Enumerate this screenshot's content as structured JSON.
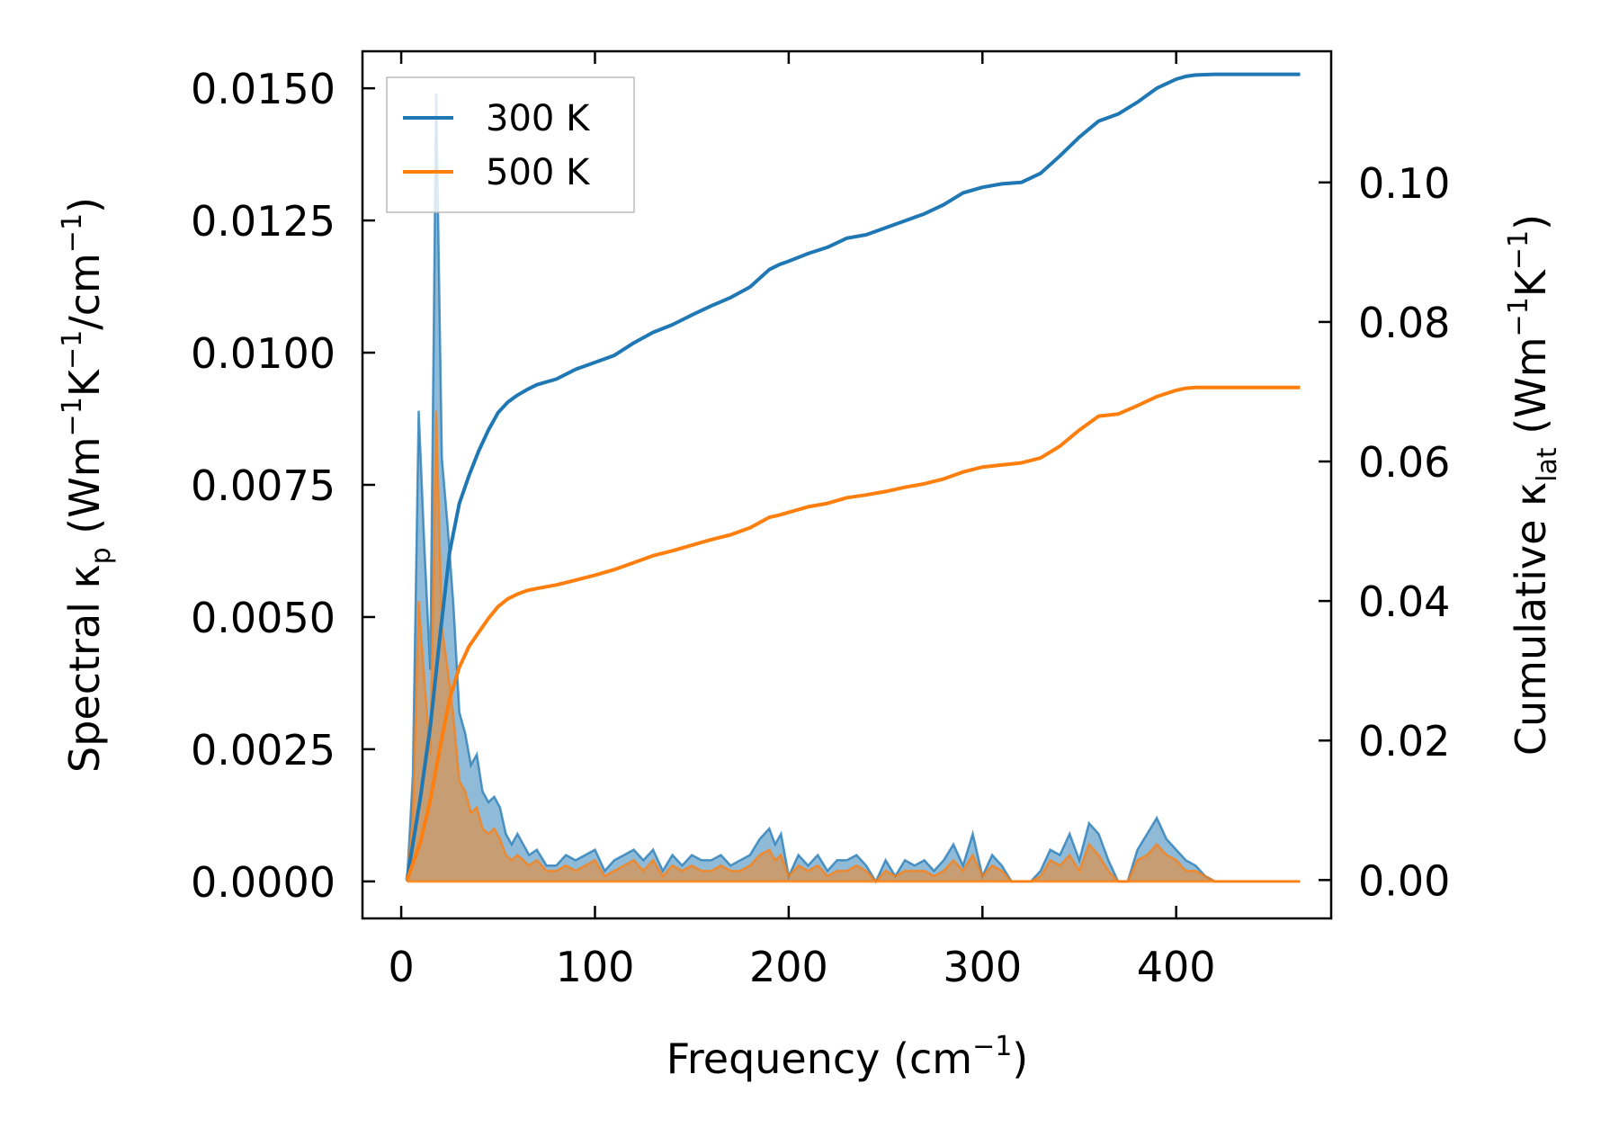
{
  "chart_data": {
    "type": "line",
    "xlabel": "Frequency (cm",
    "xlabel_sup": "−1",
    "xlabel_end": ")",
    "ylabel_left": {
      "pre": "Spectral κ",
      "sub": "p",
      "mid": " (Wm",
      "sup1": "−1",
      "k": "K",
      "sup2": "−1",
      "cm": "/cm",
      "sup3": "−1",
      "end": ")"
    },
    "ylabel_right": {
      "pre": "Cumulative κ",
      "sub": "lat",
      "mid": " (Wm",
      "sup1": "−1",
      "k": "K",
      "sup2": "−1",
      "end": ")"
    },
    "xlim": [
      -20,
      480
    ],
    "ylim_left": [
      -0.0007,
      0.0157
    ],
    "ylim_right": [
      -0.0055,
      0.1188
    ],
    "x_ticks": [
      0,
      100,
      200,
      300,
      400
    ],
    "x_tick_labels": [
      "0",
      "100",
      "200",
      "300",
      "400"
    ],
    "y_left_ticks": [
      0,
      0.0025,
      0.005,
      0.0075,
      0.01,
      0.0125,
      0.015
    ],
    "y_left_tick_labels": [
      "0.0000",
      "0.0025",
      "0.0050",
      "0.0075",
      "0.0100",
      "0.0125",
      "0.0150"
    ],
    "y_right_ticks": [
      0,
      0.02,
      0.04,
      0.06,
      0.08,
      0.1
    ],
    "y_right_tick_labels": [
      "0.00",
      "0.02",
      "0.04",
      "0.06",
      "0.08",
      "0.10"
    ],
    "colors": {
      "s300": "#1f77b4",
      "s500": "#ff7f0e"
    },
    "legend": [
      "300 K",
      "500 K"
    ],
    "legend_loc": "upper-left",
    "spectral": [
      {
        "name": "300 K",
        "x": [
          3,
          6,
          9,
          12,
          15,
          18,
          21,
          24,
          27,
          30,
          33,
          36,
          39,
          42,
          45,
          48,
          51,
          54,
          57,
          60,
          63,
          66,
          70,
          75,
          80,
          85,
          90,
          95,
          100,
          105,
          110,
          115,
          120,
          125,
          130,
          135,
          140,
          145,
          150,
          155,
          160,
          165,
          170,
          175,
          180,
          185,
          190,
          193,
          196,
          200,
          205,
          210,
          215,
          220,
          225,
          230,
          235,
          240,
          245,
          250,
          255,
          260,
          265,
          270,
          275,
          280,
          285,
          290,
          295,
          300,
          305,
          310,
          315,
          320,
          325,
          330,
          335,
          340,
          345,
          350,
          355,
          360,
          365,
          370,
          375,
          380,
          385,
          390,
          395,
          400,
          405,
          410,
          415,
          420,
          430,
          440,
          450,
          460,
          464
        ],
        "values": [
          0.0,
          0.002,
          0.0089,
          0.0063,
          0.004,
          0.0149,
          0.008,
          0.0067,
          0.0052,
          0.0032,
          0.0028,
          0.0022,
          0.0024,
          0.0017,
          0.0015,
          0.0016,
          0.0014,
          0.0009,
          0.0007,
          0.0009,
          0.0007,
          0.0005,
          0.0006,
          0.0003,
          0.0003,
          0.0005,
          0.0004,
          0.0005,
          0.0006,
          0.0002,
          0.0004,
          0.0005,
          0.0006,
          0.0004,
          0.0006,
          0.0002,
          0.0005,
          0.0003,
          0.0005,
          0.0004,
          0.0004,
          0.0005,
          0.0003,
          0.0004,
          0.0005,
          0.0008,
          0.001,
          0.0007,
          0.0009,
          0.0001,
          0.0005,
          0.0003,
          0.0005,
          0.0002,
          0.0004,
          0.0004,
          0.0005,
          0.0003,
          0.0,
          0.0004,
          0.0001,
          0.0004,
          0.0003,
          0.0004,
          0.0002,
          0.0004,
          0.0007,
          0.0003,
          0.0009,
          0.0001,
          0.0005,
          0.0003,
          0.0,
          0.0,
          0.0,
          0.0002,
          0.0006,
          0.0005,
          0.0009,
          0.0004,
          0.0011,
          0.0009,
          0.0004,
          0.0,
          0.0,
          0.0006,
          0.0009,
          0.0012,
          0.0008,
          0.0006,
          0.0004,
          0.0003,
          0.0001,
          0.0,
          0.0,
          0.0,
          0.0,
          0.0,
          0.0
        ]
      },
      {
        "name": "500 K",
        "x": [
          3,
          6,
          9,
          12,
          15,
          18,
          21,
          24,
          27,
          30,
          33,
          36,
          39,
          42,
          45,
          48,
          51,
          54,
          57,
          60,
          63,
          66,
          70,
          75,
          80,
          85,
          90,
          95,
          100,
          105,
          110,
          115,
          120,
          125,
          130,
          135,
          140,
          145,
          150,
          155,
          160,
          165,
          170,
          175,
          180,
          185,
          190,
          193,
          196,
          200,
          205,
          210,
          215,
          220,
          225,
          230,
          235,
          240,
          245,
          250,
          255,
          260,
          265,
          270,
          275,
          280,
          285,
          290,
          295,
          300,
          305,
          310,
          315,
          320,
          325,
          330,
          335,
          340,
          345,
          350,
          355,
          360,
          365,
          370,
          375,
          380,
          385,
          390,
          395,
          400,
          405,
          410,
          415,
          420,
          430,
          440,
          450,
          460,
          464
        ],
        "values": [
          0.0,
          0.0012,
          0.0053,
          0.0038,
          0.0024,
          0.0089,
          0.0048,
          0.004,
          0.0031,
          0.0019,
          0.0017,
          0.0013,
          0.0014,
          0.001,
          0.0009,
          0.001,
          0.0008,
          0.0005,
          0.0004,
          0.0005,
          0.0004,
          0.0003,
          0.0004,
          0.0002,
          0.0002,
          0.0003,
          0.0002,
          0.0003,
          0.0004,
          0.0001,
          0.0002,
          0.0003,
          0.0004,
          0.0002,
          0.0004,
          0.0001,
          0.0003,
          0.0002,
          0.0003,
          0.0002,
          0.0002,
          0.0003,
          0.0002,
          0.0002,
          0.0003,
          0.0005,
          0.0006,
          0.0004,
          0.0005,
          0.0001,
          0.0003,
          0.0002,
          0.0003,
          0.0001,
          0.0002,
          0.0002,
          0.0003,
          0.0002,
          0.0,
          0.0002,
          0.0001,
          0.0002,
          0.0002,
          0.0002,
          0.0001,
          0.0002,
          0.0004,
          0.0002,
          0.0005,
          0.0001,
          0.0003,
          0.0002,
          0.0,
          0.0,
          0.0,
          0.0001,
          0.0004,
          0.0003,
          0.0005,
          0.0002,
          0.0007,
          0.0005,
          0.0002,
          0.0,
          0.0,
          0.0004,
          0.0005,
          0.0007,
          0.0005,
          0.0004,
          0.0002,
          0.0002,
          0.0001,
          0.0,
          0.0,
          0.0,
          0.0,
          0.0,
          0.0
        ]
      }
    ],
    "cumulative": [
      {
        "name": "300 K",
        "x": [
          3,
          10,
          15,
          20,
          25,
          30,
          35,
          40,
          45,
          50,
          55,
          60,
          65,
          70,
          80,
          90,
          100,
          110,
          120,
          130,
          140,
          150,
          160,
          170,
          180,
          190,
          195,
          200,
          210,
          220,
          230,
          240,
          250,
          260,
          270,
          280,
          290,
          300,
          310,
          320,
          330,
          340,
          350,
          360,
          370,
          380,
          390,
          400,
          405,
          410,
          420,
          430,
          440,
          450,
          464
        ],
        "values": [
          0.0,
          0.012,
          0.022,
          0.035,
          0.047,
          0.054,
          0.058,
          0.0615,
          0.0645,
          0.067,
          0.0685,
          0.0695,
          0.0703,
          0.071,
          0.0718,
          0.0732,
          0.0742,
          0.0752,
          0.077,
          0.0785,
          0.0796,
          0.081,
          0.0823,
          0.0835,
          0.085,
          0.0875,
          0.0882,
          0.0887,
          0.0898,
          0.0907,
          0.092,
          0.0925,
          0.0935,
          0.0945,
          0.0955,
          0.0968,
          0.0985,
          0.0993,
          0.0998,
          0.1,
          0.1013,
          0.1038,
          0.1065,
          0.1088,
          0.1098,
          0.1115,
          0.1135,
          0.1148,
          0.1152,
          0.1154,
          0.1155,
          0.1155,
          0.1155,
          0.1155,
          0.1155
        ]
      },
      {
        "name": "500 K",
        "x": [
          3,
          10,
          15,
          20,
          25,
          30,
          35,
          40,
          45,
          50,
          55,
          60,
          65,
          70,
          80,
          90,
          100,
          110,
          120,
          130,
          140,
          150,
          160,
          170,
          180,
          190,
          195,
          200,
          210,
          220,
          230,
          240,
          250,
          260,
          270,
          280,
          290,
          300,
          310,
          320,
          330,
          340,
          350,
          360,
          370,
          380,
          390,
          400,
          405,
          410,
          420,
          430,
          440,
          450,
          464
        ],
        "values": [
          0.0,
          0.0055,
          0.0115,
          0.019,
          0.026,
          0.0305,
          0.0335,
          0.0355,
          0.0375,
          0.0392,
          0.0403,
          0.041,
          0.0415,
          0.0418,
          0.0423,
          0.043,
          0.0437,
          0.0445,
          0.0455,
          0.0465,
          0.0472,
          0.048,
          0.0488,
          0.0495,
          0.0505,
          0.052,
          0.0523,
          0.0527,
          0.0535,
          0.054,
          0.0548,
          0.0552,
          0.0557,
          0.0563,
          0.0568,
          0.0575,
          0.0585,
          0.0592,
          0.0595,
          0.0598,
          0.0605,
          0.0622,
          0.0645,
          0.0665,
          0.0668,
          0.068,
          0.0693,
          0.0702,
          0.0705,
          0.0706,
          0.0706,
          0.0706,
          0.0706,
          0.0706,
          0.0706
        ]
      }
    ]
  }
}
